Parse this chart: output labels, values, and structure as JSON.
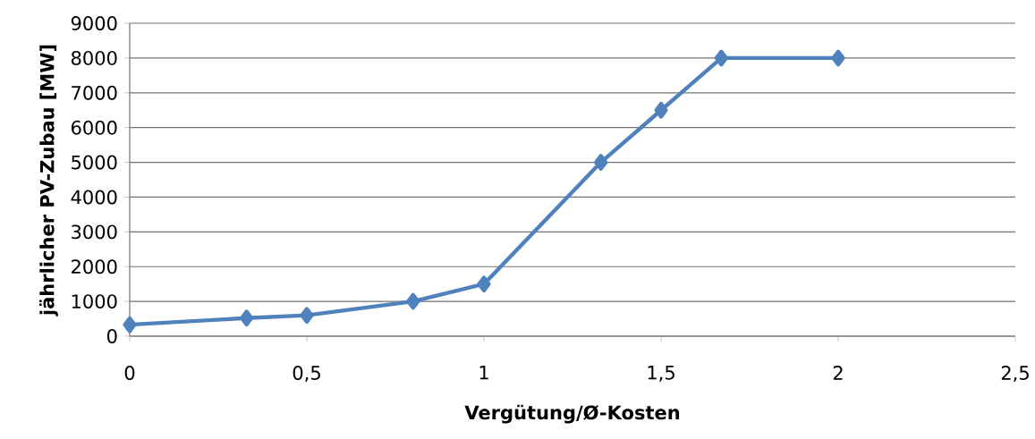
{
  "chart_data": {
    "type": "line",
    "xlabel": "Vergütung/Ø-Kosten",
    "ylabel": "jährlicher PV-Zubau [MW]",
    "x": [
      0,
      0.33,
      0.5,
      0.8,
      1,
      1.33,
      1.5,
      1.67,
      2
    ],
    "values": [
      330,
      520,
      600,
      1000,
      1500,
      5000,
      6500,
      8000,
      8000
    ],
    "color": "#4f81bd",
    "marker": "diamond",
    "line_style": "solid",
    "grid": "y",
    "xlim": [
      0,
      2.5
    ],
    "ylim": [
      0,
      9000
    ],
    "xticks": [
      0,
      {
        "value": 0.5,
        "label": "0,5"
      },
      1,
      {
        "value": 1.5,
        "label": "1,5"
      },
      2,
      {
        "value": 2.5,
        "label": "2,5"
      }
    ],
    "yticks": [
      0,
      1000,
      2000,
      3000,
      4000,
      5000,
      6000,
      7000,
      8000,
      9000
    ]
  }
}
